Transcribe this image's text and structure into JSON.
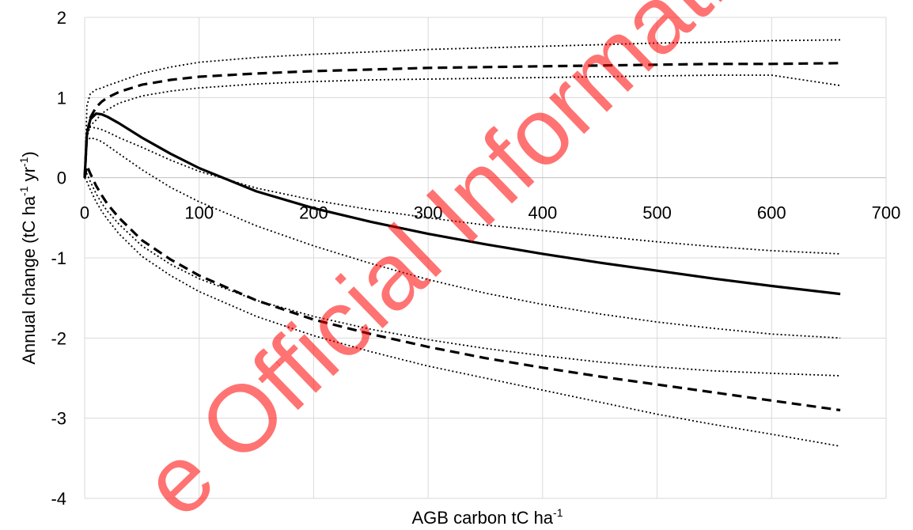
{
  "chart_data": {
    "type": "line",
    "title": "",
    "xlabel": "AGB carbon tC ha",
    "xlabel_sup": "-1",
    "ylabel": {
      "parts": [
        "Annual change (tC ha",
        "-1",
        " yr",
        "-1",
        ")"
      ]
    },
    "xlim": [
      0,
      700
    ],
    "ylim": [
      -4,
      2
    ],
    "xticks": [
      "0",
      "100",
      "200",
      "300",
      "400",
      "500",
      "600",
      "700"
    ],
    "yticks": [
      "2",
      "1",
      "0",
      "-1",
      "-2",
      "-3",
      "-4"
    ],
    "grid": true,
    "x": [
      0,
      2,
      5,
      10,
      15,
      20,
      30,
      50,
      75,
      100,
      150,
      200,
      250,
      300,
      350,
      400,
      450,
      500,
      550,
      600,
      660
    ],
    "series": [
      {
        "style": "solid",
        "values": [
          0,
          0.55,
          0.73,
          0.8,
          0.79,
          0.76,
          0.68,
          0.5,
          0.3,
          0.12,
          -0.17,
          -0.38,
          -0.55,
          -0.7,
          -0.83,
          -0.95,
          -1.06,
          -1.16,
          -1.26,
          -1.35,
          -1.45
        ]
      },
      {
        "style": "dashed",
        "values": [
          0,
          0.55,
          0.75,
          0.88,
          0.95,
          1.0,
          1.07,
          1.16,
          1.22,
          1.26,
          1.3,
          1.33,
          1.35,
          1.37,
          1.38,
          1.39,
          1.4,
          1.41,
          1.42,
          1.42,
          1.43
        ]
      },
      {
        "style": "dashed",
        "values": [
          0,
          0.15,
          0.05,
          -0.1,
          -0.22,
          -0.33,
          -0.5,
          -0.78,
          -1.02,
          -1.22,
          -1.53,
          -1.77,
          -1.95,
          -2.11,
          -2.25,
          -2.37,
          -2.48,
          -2.58,
          -2.68,
          -2.78,
          -2.9
        ]
      },
      {
        "style": "dotted",
        "values": [
          0,
          0.9,
          1.05,
          1.1,
          1.12,
          1.15,
          1.2,
          1.3,
          1.38,
          1.44,
          1.5,
          1.54,
          1.57,
          1.6,
          1.62,
          1.64,
          1.66,
          1.68,
          1.69,
          1.71,
          1.72
        ]
      },
      {
        "style": "dotted",
        "values": [
          0,
          0.5,
          0.65,
          0.72,
          0.8,
          0.85,
          0.93,
          1.02,
          1.08,
          1.12,
          1.17,
          1.2,
          1.22,
          1.23,
          1.24,
          1.25,
          1.26,
          1.27,
          1.28,
          1.28,
          1.15
        ]
      },
      {
        "style": "dotted",
        "values": [
          0,
          0.6,
          0.63,
          0.62,
          0.6,
          0.57,
          0.5,
          0.38,
          0.22,
          0.08,
          -0.13,
          -0.28,
          -0.4,
          -0.5,
          -0.59,
          -0.66,
          -0.73,
          -0.8,
          -0.86,
          -0.91,
          -0.95
        ]
      },
      {
        "style": "dotted",
        "values": [
          0,
          0.45,
          0.5,
          0.48,
          0.45,
          0.4,
          0.3,
          0.1,
          -0.12,
          -0.3,
          -0.6,
          -0.85,
          -1.07,
          -1.27,
          -1.44,
          -1.58,
          -1.7,
          -1.8,
          -1.88,
          -1.95,
          -2.0
        ]
      },
      {
        "style": "dotted",
        "values": [
          0,
          0.05,
          -0.05,
          -0.2,
          -0.32,
          -0.42,
          -0.58,
          -0.85,
          -1.08,
          -1.26,
          -1.53,
          -1.73,
          -1.89,
          -2.02,
          -2.13,
          -2.22,
          -2.3,
          -2.36,
          -2.41,
          -2.44,
          -2.47
        ]
      },
      {
        "style": "dotted",
        "values": [
          0,
          -0.05,
          -0.15,
          -0.3,
          -0.42,
          -0.52,
          -0.7,
          -0.98,
          -1.22,
          -1.42,
          -1.73,
          -1.97,
          -2.17,
          -2.35,
          -2.5,
          -2.65,
          -2.8,
          -2.95,
          -3.08,
          -3.2,
          -3.35
        ]
      }
    ]
  },
  "watermark": {
    "text": "e Official Information A",
    "color": "#ff0000"
  }
}
